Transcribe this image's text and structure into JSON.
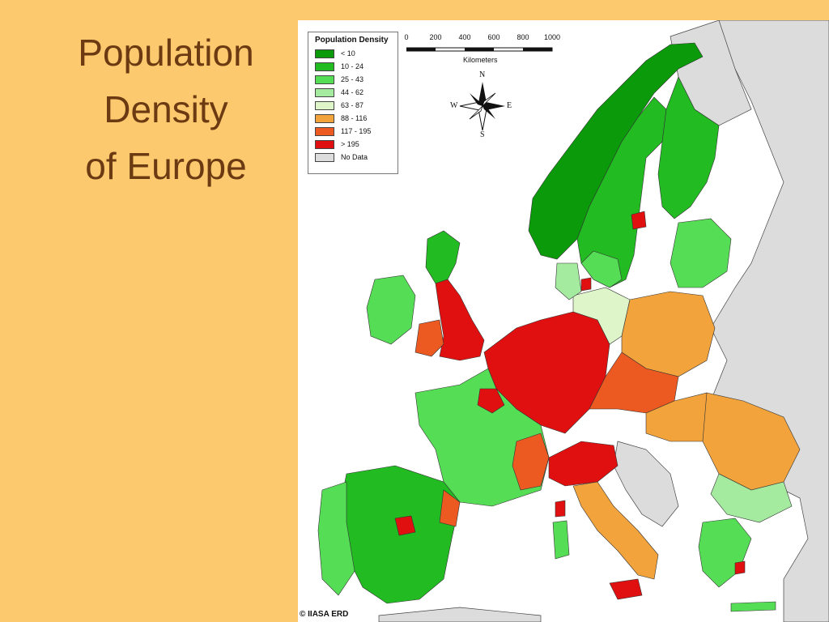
{
  "slide": {
    "title_lines": [
      "Population",
      "Density",
      "of Europe"
    ]
  },
  "map": {
    "legend": {
      "title": "Population Density",
      "items": [
        {
          "label": "< 10",
          "color": "#0A9A0A"
        },
        {
          "label": "10 - 24",
          "color": "#22BB22"
        },
        {
          "label": "25 - 43",
          "color": "#55DD55"
        },
        {
          "label": "44 - 62",
          "color": "#A4EBA0"
        },
        {
          "label": "63 - 87",
          "color": "#DDF5C8"
        },
        {
          "label": "88 - 116",
          "color": "#F2A33C"
        },
        {
          "label": "117 - 195",
          "color": "#EC5A22"
        },
        {
          "label": "> 195",
          "color": "#E01010"
        },
        {
          "label": "No Data",
          "color": "#DCDCDC"
        }
      ]
    },
    "scale": {
      "ticks": [
        "0",
        "200",
        "400",
        "600",
        "800",
        "1000"
      ],
      "unit": "Kilometers"
    },
    "compass": {
      "n": "N",
      "s": "S",
      "e": "E",
      "w": "W"
    },
    "credit": "© IIASA ERD",
    "colors": {
      "sea": "#FFFFFF",
      "no_data_land": "#DCDCDC",
      "border": "#333333"
    }
  }
}
